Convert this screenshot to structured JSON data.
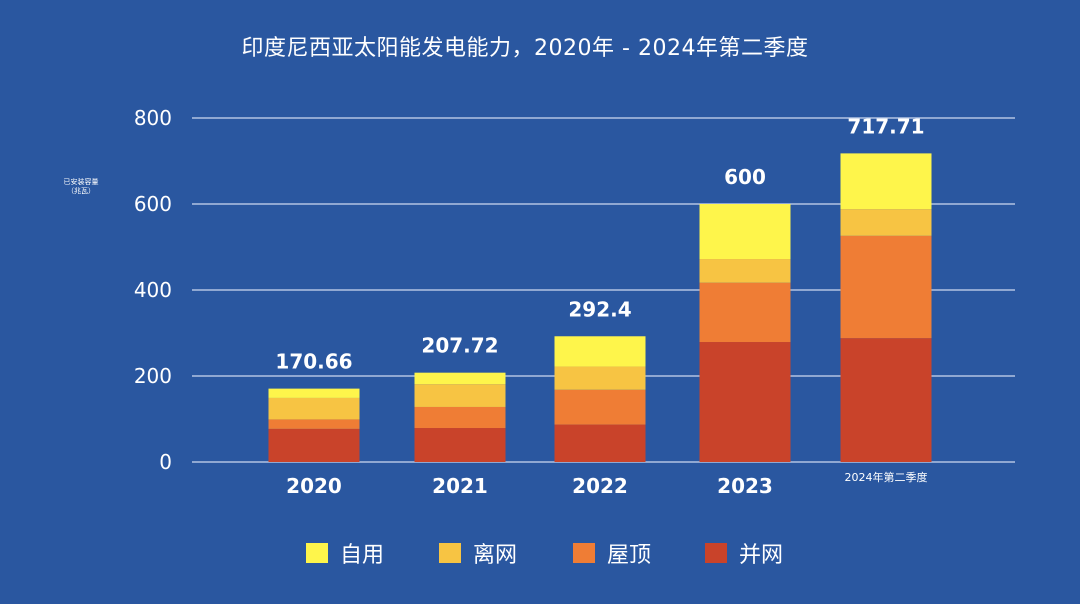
{
  "chart_data": {
    "type": "bar",
    "stacked": true,
    "title": "印度尼西亚太阳能发电能力，2020年 - 2024年第二季度",
    "ylabel": "已安装容量\n（兆瓦）",
    "xlabel": "",
    "categories": [
      "2020",
      "2021",
      "2022",
      "2023",
      "2024年第二季度"
    ],
    "ylim": [
      0,
      800
    ],
    "yticks": [
      0,
      200,
      400,
      600,
      800
    ],
    "grid": true,
    "legend_position": "bottom",
    "series": [
      {
        "name": "并网",
        "color": "#c9432a",
        "values": [
          77,
          79,
          87,
          279,
          288
        ]
      },
      {
        "name": "屋顶",
        "color": "#ef7d35",
        "values": [
          22,
          49,
          81,
          138,
          238
        ]
      },
      {
        "name": "离网",
        "color": "#f7c443",
        "values": [
          50,
          53,
          54,
          55,
          62
        ]
      },
      {
        "name": "自用",
        "color": "#fef54b",
        "values": [
          21.66,
          26.72,
          70.4,
          128,
          129.71
        ]
      }
    ],
    "totals": [
      "170.66",
      "207.72",
      "292.4",
      "600",
      "717.71"
    ]
  },
  "legend_order": [
    "自用",
    "离网",
    "屋顶",
    "并网"
  ]
}
